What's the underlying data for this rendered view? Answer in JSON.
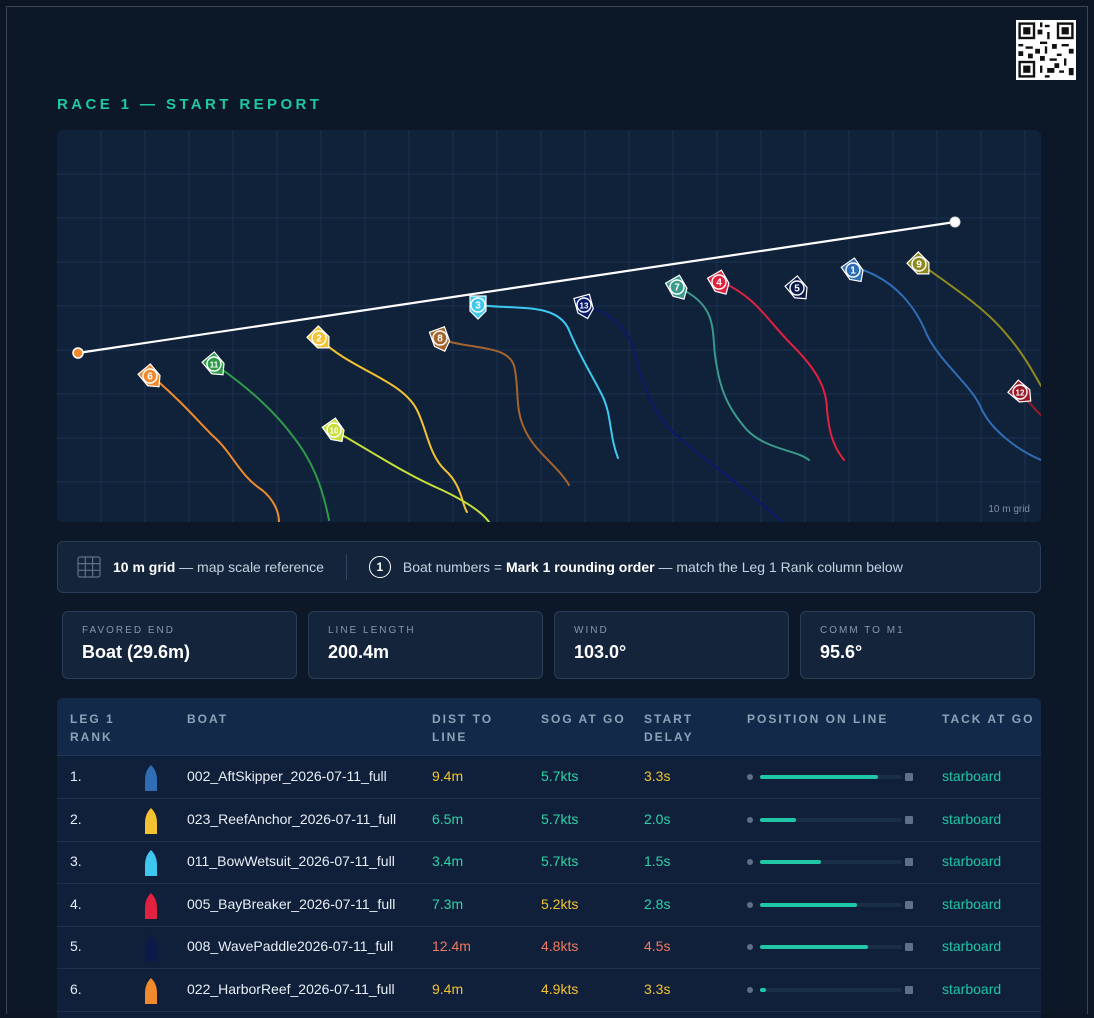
{
  "title": "RACE 1 — START REPORT",
  "map": {
    "grid_note": "10 m grid",
    "boats": [
      {
        "num": "1",
        "color": "#2f6db5"
      },
      {
        "num": "2",
        "color": "#f2c230"
      },
      {
        "num": "3",
        "color": "#3ec8f0"
      },
      {
        "num": "4",
        "color": "#e0213f"
      },
      {
        "num": "5",
        "color": "#0c1a4a"
      },
      {
        "num": "6",
        "color": "#f08a2c"
      },
      {
        "num": "7",
        "color": "#3a9a8a"
      },
      {
        "num": "8",
        "color": "#a3642e"
      },
      {
        "num": "9",
        "color": "#8e8a1e"
      },
      {
        "num": "10",
        "color": "#c6df3a"
      },
      {
        "num": "11",
        "color": "#2f9a4a"
      },
      {
        "num": "12",
        "color": "#9a1a2a"
      },
      {
        "num": "13",
        "color": "#0a1a6a"
      }
    ]
  },
  "legend": {
    "grid_bold": "10 m grid",
    "grid_text": " — map scale reference",
    "icon_num": "1",
    "boats_prefix": "Boat numbers = ",
    "boats_bold": "Mark 1 rounding order",
    "boats_suffix": " — match the Leg 1 Rank column below"
  },
  "stats": [
    {
      "label": "FAVORED END",
      "value": "Boat (29.6m)"
    },
    {
      "label": "LINE LENGTH",
      "value": "200.4m"
    },
    {
      "label": "WIND",
      "value": "103.0°"
    },
    {
      "label": "COMM TO M1",
      "value": "95.6°"
    }
  ],
  "table": {
    "headers": [
      "LEG 1\nRANK",
      "BOAT",
      "DIST TO\nLINE",
      "SOG AT GO",
      "START\nDELAY",
      "POSITION ON LINE",
      "TACK AT GO"
    ],
    "rows": [
      {
        "rank": "1.",
        "color": "#2f6db5",
        "boat": "002_AftSkipper_2026-07-11_full",
        "dist": "9.4m",
        "dist_tone": "yellow",
        "sog": "5.7kts",
        "sog_tone": "green",
        "delay": "3.3s",
        "delay_tone": "yellow",
        "position": 0.83,
        "tack": "starboard"
      },
      {
        "rank": "2.",
        "color": "#f2c230",
        "boat": "023_ReefAnchor_2026-07-11_full",
        "dist": "6.5m",
        "dist_tone": "green",
        "sog": "5.7kts",
        "sog_tone": "green",
        "delay": "2.0s",
        "delay_tone": "green",
        "position": 0.25,
        "tack": "starboard"
      },
      {
        "rank": "3.",
        "color": "#3ec8f0",
        "boat": "011_BowWetsuit_2026-07-11_full",
        "dist": "3.4m",
        "dist_tone": "green",
        "sog": "5.7kts",
        "sog_tone": "green",
        "delay": "1.5s",
        "delay_tone": "green",
        "position": 0.43,
        "tack": "starboard"
      },
      {
        "rank": "4.",
        "color": "#e0213f",
        "boat": "005_BayBreaker_2026-07-11_full",
        "dist": "7.3m",
        "dist_tone": "green",
        "sog": "5.2kts",
        "sog_tone": "yellow",
        "delay": "2.8s",
        "delay_tone": "green",
        "position": 0.68,
        "tack": "starboard"
      },
      {
        "rank": "5.",
        "color": "#0c1a4a",
        "boat": "008_WavePaddle2026-07-11_full",
        "dist": "12.4m",
        "dist_tone": "red",
        "sog": "4.8kts",
        "sog_tone": "red",
        "delay": "4.5s",
        "delay_tone": "red",
        "position": 0.76,
        "tack": "starboard"
      },
      {
        "rank": "6.",
        "color": "#f08a2c",
        "boat": "022_HarborReef_2026-07-11_full",
        "dist": "9.4m",
        "dist_tone": "yellow",
        "sog": "4.9kts",
        "sog_tone": "yellow",
        "delay": "3.3s",
        "delay_tone": "yellow",
        "position": 0.04,
        "tack": "starboard"
      }
    ]
  }
}
